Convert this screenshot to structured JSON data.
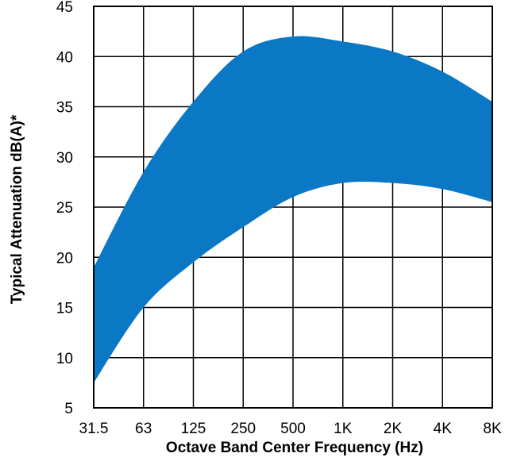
{
  "chart_data": {
    "type": "area",
    "title": "",
    "xlabel": "Octave Band Center Frequency (Hz)",
    "ylabel": "Typical Attenuation dB(A)*",
    "categories": [
      "31.5",
      "63",
      "125",
      "250",
      "500",
      "1K",
      "2K",
      "4K",
      "8K"
    ],
    "yticks": [
      5,
      10,
      15,
      20,
      25,
      30,
      35,
      40,
      45
    ],
    "ylim": [
      5,
      45
    ],
    "grid": true,
    "series": [
      {
        "values_upper": [
          19,
          28.5,
          35.5,
          40.5,
          42,
          41.5,
          40.5,
          38.5,
          35.5
        ],
        "values_lower": [
          7.5,
          15,
          19.5,
          23,
          26,
          27.4,
          27.4,
          26.8,
          25.5
        ]
      }
    ],
    "fill_color": "#0b78c5"
  }
}
